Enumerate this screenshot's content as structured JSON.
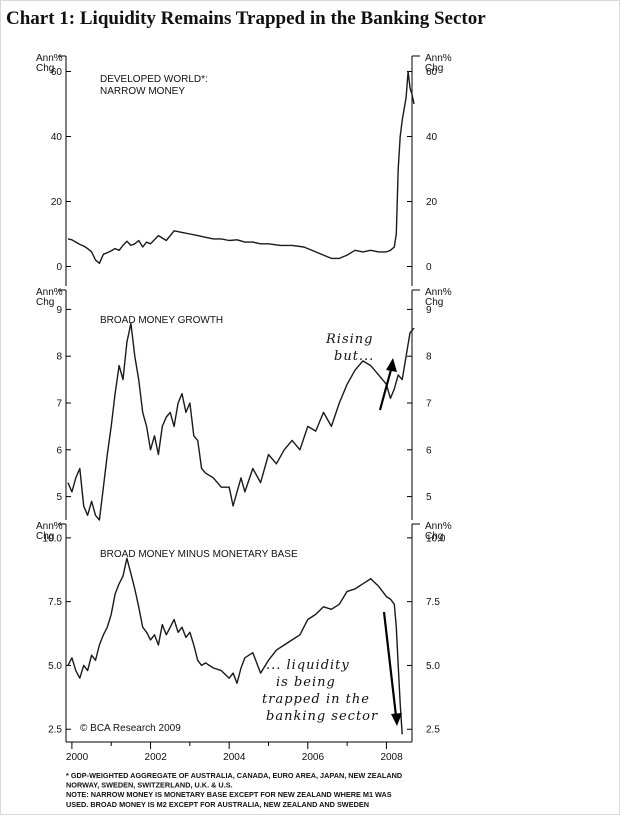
{
  "page_title": "Chart 1:  Liquidity Remains Trapped in the Banking Sector",
  "colors": {
    "line": "#1a1a1a",
    "background": "#ffffff"
  },
  "chart_data": [
    {
      "type": "line",
      "title": "DEVELOPED WORLD*: NARROW MONEY",
      "title_lines": [
        "DEVELOPED WORLD*:",
        "NARROW MONEY"
      ],
      "ylabel": "Ann% Chg",
      "ylabel_lines": [
        "Ann%",
        "Chg"
      ],
      "ylim": [
        -6,
        66
      ],
      "yticks": [
        0,
        20,
        40,
        60
      ],
      "yticklabels": [
        "0",
        "20",
        "40",
        "60"
      ],
      "grid": false,
      "series": [
        {
          "x": [
            1999.9,
            2000.0,
            2000.1,
            2000.2,
            2000.3,
            2000.4,
            2000.5,
            2000.6,
            2000.7,
            2000.8,
            2000.9,
            2001.0,
            2001.1,
            2001.2,
            2001.3,
            2001.4,
            2001.5,
            2001.6,
            2001.7,
            2001.8,
            2001.9,
            2002.0,
            2002.2,
            2002.4,
            2002.6,
            2002.8,
            2003.0,
            2003.2,
            2003.4,
            2003.6,
            2003.8,
            2004.0,
            2004.2,
            2004.4,
            2004.6,
            2004.8,
            2005.0,
            2005.3,
            2005.6,
            2005.9,
            2006.2,
            2006.4,
            2006.6,
            2006.8,
            2007.0,
            2007.2,
            2007.4,
            2007.6,
            2007.8,
            2008.0,
            2008.1,
            2008.2,
            2008.25,
            2008.3,
            2008.35,
            2008.4,
            2008.5,
            2008.55,
            2008.6,
            2008.65,
            2008.7
          ],
          "values": [
            8.5,
            8.2,
            7.5,
            6.8,
            6.3,
            5.5,
            4.5,
            2.0,
            1.0,
            3.8,
            4.2,
            4.8,
            5.5,
            5.0,
            6.5,
            7.8,
            6.5,
            7.0,
            8.0,
            6.0,
            7.5,
            7.0,
            9.5,
            8.0,
            11.0,
            10.5,
            10.0,
            9.5,
            9.0,
            8.5,
            8.5,
            8.0,
            8.2,
            7.5,
            7.5,
            7.0,
            7.0,
            6.5,
            6.5,
            6.0,
            4.5,
            3.5,
            2.5,
            2.5,
            3.5,
            5.0,
            4.5,
            5.0,
            4.5,
            4.5,
            5.0,
            6.0,
            10.0,
            30.0,
            40.0,
            45.0,
            52.0,
            60.0,
            55.0,
            53.0,
            50.0
          ]
        }
      ]
    },
    {
      "type": "line",
      "title": "BROAD MONEY GROWTH",
      "ylabel": "Ann% Chg",
      "ylabel_lines": [
        "Ann%",
        "Chg"
      ],
      "ylim": [
        4.5,
        9.5
      ],
      "yticks": [
        5,
        6,
        7,
        8,
        9
      ],
      "yticklabels": [
        "5",
        "6",
        "7",
        "8",
        "9"
      ],
      "grid": false,
      "annotation": {
        "text": "Rising but...",
        "lines": [
          "Rising",
          "but..."
        ]
      },
      "series": [
        {
          "x": [
            1999.9,
            2000.0,
            2000.1,
            2000.2,
            2000.3,
            2000.4,
            2000.5,
            2000.6,
            2000.7,
            2000.8,
            2000.9,
            2001.0,
            2001.1,
            2001.2,
            2001.3,
            2001.4,
            2001.5,
            2001.6,
            2001.7,
            2001.8,
            2001.9,
            2002.0,
            2002.1,
            2002.2,
            2002.3,
            2002.4,
            2002.5,
            2002.6,
            2002.7,
            2002.8,
            2002.9,
            2003.0,
            2003.1,
            2003.2,
            2003.3,
            2003.4,
            2003.6,
            2003.8,
            2004.0,
            2004.1,
            2004.2,
            2004.3,
            2004.4,
            2004.6,
            2004.8,
            2005.0,
            2005.2,
            2005.4,
            2005.6,
            2005.8,
            2006.0,
            2006.2,
            2006.4,
            2006.6,
            2006.8,
            2007.0,
            2007.2,
            2007.4,
            2007.6,
            2007.8,
            2008.0,
            2008.1,
            2008.2,
            2008.3,
            2008.4,
            2008.5,
            2008.6,
            2008.7
          ],
          "values": [
            5.3,
            5.1,
            5.4,
            5.6,
            4.8,
            4.6,
            4.9,
            4.6,
            4.5,
            5.2,
            5.9,
            6.5,
            7.2,
            7.8,
            7.5,
            8.3,
            8.7,
            8.0,
            7.5,
            6.8,
            6.5,
            6.0,
            6.3,
            5.9,
            6.5,
            6.7,
            6.8,
            6.5,
            7.0,
            7.2,
            6.8,
            7.0,
            6.3,
            6.2,
            5.6,
            5.5,
            5.4,
            5.2,
            5.2,
            4.8,
            5.1,
            5.4,
            5.1,
            5.6,
            5.3,
            5.9,
            5.7,
            6.0,
            6.2,
            6.0,
            6.5,
            6.4,
            6.8,
            6.5,
            7.0,
            7.4,
            7.7,
            7.9,
            7.8,
            7.6,
            7.4,
            7.1,
            7.3,
            7.6,
            7.5,
            8.0,
            8.5,
            8.6
          ]
        }
      ]
    },
    {
      "type": "line",
      "title": "BROAD MONEY MINUS MONETARY BASE",
      "ylabel": "Ann% Chg",
      "ylabel_lines": [
        "Ann%",
        "Chg"
      ],
      "ylim": [
        2.0,
        10.7
      ],
      "yticks": [
        2.5,
        5.0,
        7.5,
        10.0
      ],
      "yticklabels": [
        "2.5",
        "5.0",
        "7.5",
        "10.0"
      ],
      "xlim": [
        1999.85,
        2008.65
      ],
      "xticklabels": [
        "2000",
        "2002",
        "2004",
        "2006",
        "2008"
      ],
      "xticks": [
        2000,
        2002,
        2004,
        2006,
        2008
      ],
      "grid": false,
      "annotation": {
        "text": "... liquidity is being trapped in the banking sector",
        "lines": [
          "... liquidity",
          "is being",
          "trapped in the",
          "banking sector"
        ]
      },
      "source": "© BCA Research 2009",
      "series": [
        {
          "x": [
            1999.9,
            2000.0,
            2000.1,
            2000.2,
            2000.3,
            2000.4,
            2000.5,
            2000.6,
            2000.7,
            2000.8,
            2000.9,
            2001.0,
            2001.1,
            2001.2,
            2001.3,
            2001.4,
            2001.5,
            2001.6,
            2001.7,
            2001.8,
            2001.9,
            2002.0,
            2002.1,
            2002.2,
            2002.3,
            2002.4,
            2002.5,
            2002.6,
            2002.7,
            2002.8,
            2002.9,
            2003.0,
            2003.1,
            2003.2,
            2003.3,
            2003.4,
            2003.6,
            2003.8,
            2004.0,
            2004.1,
            2004.2,
            2004.3,
            2004.4,
            2004.6,
            2004.8,
            2005.0,
            2005.2,
            2005.4,
            2005.6,
            2005.8,
            2006.0,
            2006.2,
            2006.4,
            2006.6,
            2006.8,
            2007.0,
            2007.2,
            2007.4,
            2007.6,
            2007.8,
            2008.0,
            2008.1,
            2008.2,
            2008.25,
            2008.3,
            2008.35,
            2008.4
          ],
          "values": [
            5.0,
            5.3,
            4.8,
            4.5,
            5.0,
            4.8,
            5.4,
            5.2,
            5.8,
            6.2,
            6.5,
            7.0,
            7.8,
            8.2,
            8.5,
            9.2,
            8.6,
            8.0,
            7.3,
            6.5,
            6.3,
            6.0,
            6.2,
            5.8,
            6.6,
            6.2,
            6.5,
            6.8,
            6.3,
            6.5,
            6.1,
            6.3,
            5.8,
            5.2,
            5.0,
            5.1,
            4.9,
            4.8,
            4.5,
            4.7,
            4.3,
            4.9,
            5.3,
            5.5,
            4.7,
            5.2,
            5.6,
            5.8,
            6.0,
            6.2,
            6.8,
            7.0,
            7.3,
            7.2,
            7.4,
            7.9,
            8.0,
            8.2,
            8.4,
            8.1,
            7.7,
            7.6,
            7.4,
            6.5,
            5.0,
            3.5,
            2.3
          ]
        }
      ]
    }
  ],
  "footnote": "* GDP-WEIGHTED AGGREGATE OF AUSTRALIA, CANADA, EURO AREA, JAPAN, NEW ZEALAND NORWAY, SWEDEN, SWITZERLAND, U.K. & U.S. NOTE: NARROW MONEY IS MONETARY BASE EXCEPT FOR NEW ZEALAND WHERE M1 WAS USED. BROAD MONEY IS M2 EXCEPT FOR AUSTRALIA, NEW ZEALAND AND SWEDEN",
  "footnote_lines": [
    "* GDP-WEIGHTED AGGREGATE OF AUSTRALIA, CANADA, EURO AREA, JAPAN, NEW ZEALAND",
    "NORWAY, SWEDEN, SWITZERLAND, U.K. & U.S.",
    "NOTE: NARROW MONEY IS MONETARY BASE EXCEPT FOR NEW ZEALAND WHERE M1 WAS",
    "USED. BROAD MONEY IS M2 EXCEPT FOR AUSTRALIA, NEW ZEALAND AND SWEDEN"
  ]
}
